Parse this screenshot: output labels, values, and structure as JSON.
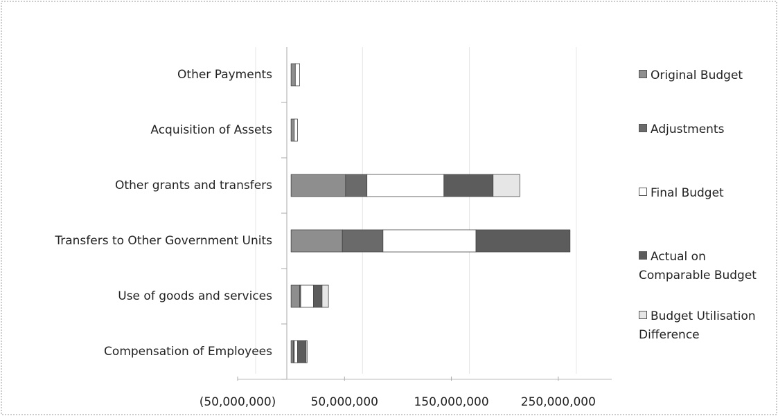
{
  "chart_data": {
    "type": "stacked_bar_horizontal",
    "categories": [
      "Compensation of Employees",
      "Use of goods and services",
      "Transfers to Other Government Units",
      "Other grants and transfers",
      "Acquisition of Assets",
      "Other Payments"
    ],
    "series": [
      {
        "name": "Original Budget",
        "color": "#8e8e8e",
        "values": [
          2000000,
          8000000,
          48000000,
          51000000,
          3000000,
          4000000
        ]
      },
      {
        "name": "Adjustments",
        "color": "#6a6a6a",
        "values": [
          1000000,
          1000000,
          38000000,
          20000000,
          0,
          0
        ]
      },
      {
        "name": "Final Budget",
        "color": "#ffffff",
        "values": [
          3000000,
          12000000,
          87000000,
          72000000,
          3000000,
          4000000
        ]
      },
      {
        "name": "Actual on Comparable Budget",
        "color": "#5c5c5c",
        "values": [
          8000000,
          8000000,
          88000000,
          46000000,
          0,
          0
        ]
      },
      {
        "name": "Budget Utilisation Difference",
        "color": "#e6e6e6",
        "values": [
          1000000,
          6000000,
          0,
          25000000,
          0,
          0
        ]
      }
    ],
    "xlim": [
      -50000000,
      300000000
    ],
    "xticks": [
      {
        "value": -50000000,
        "label": "(50,000,000)"
      },
      {
        "value": 50000000,
        "label": "50,000,000"
      },
      {
        "value": 150000000,
        "label": "150,000,000"
      },
      {
        "value": 250000000,
        "label": "250,000,000"
      }
    ],
    "grid": true,
    "legend": "right"
  }
}
